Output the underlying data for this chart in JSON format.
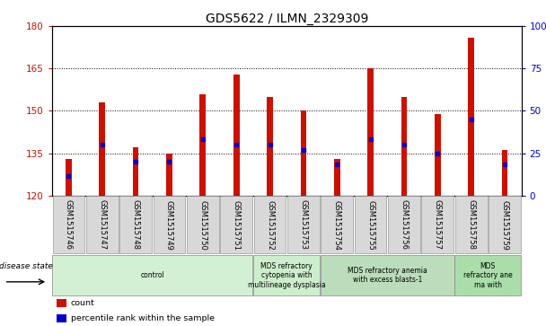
{
  "title": "GDS5622 / ILMN_2329309",
  "samples": [
    "GSM1515746",
    "GSM1515747",
    "GSM1515748",
    "GSM1515749",
    "GSM1515750",
    "GSM1515751",
    "GSM1515752",
    "GSM1515753",
    "GSM1515754",
    "GSM1515755",
    "GSM1515756",
    "GSM1515757",
    "GSM1515758",
    "GSM1515759"
  ],
  "bar_tops": [
    133,
    153,
    137,
    135,
    156,
    163,
    155,
    150,
    133,
    165,
    155,
    149,
    176,
    136
  ],
  "blue_dots": [
    127,
    138,
    132,
    132,
    140,
    138,
    138,
    136,
    131,
    140,
    138,
    135,
    147,
    131
  ],
  "bar_base": 120,
  "ylim_left": [
    120,
    180
  ],
  "yticks_left": [
    120,
    135,
    150,
    165,
    180
  ],
  "ylim_right": [
    0,
    100
  ],
  "yticks_right": [
    0,
    25,
    50,
    75,
    100
  ],
  "bar_color": "#cc1100",
  "dot_color": "#0000cc",
  "bg_plot": "#ffffff",
  "tick_color_left": "#cc1100",
  "tick_color_right": "#0000cc",
  "bar_width": 0.18,
  "disease_groups": [
    {
      "label": "control",
      "start": 0,
      "end": 6,
      "color": "#d4f0d4"
    },
    {
      "label": "MDS refractory\ncytopenia with\nmultilineage dysplasia",
      "start": 6,
      "end": 8,
      "color": "#cceecc"
    },
    {
      "label": "MDS refractory anemia\nwith excess blasts-1",
      "start": 8,
      "end": 12,
      "color": "#bbddbb"
    },
    {
      "label": "MDS\nrefractory ane\nma with",
      "start": 12,
      "end": 14,
      "color": "#aaddaa"
    }
  ],
  "legend_entries": [
    {
      "label": "count",
      "color": "#cc1100"
    },
    {
      "label": "percentile rank within the sample",
      "color": "#0000cc"
    }
  ],
  "label_box_color": "#d8d8d8"
}
